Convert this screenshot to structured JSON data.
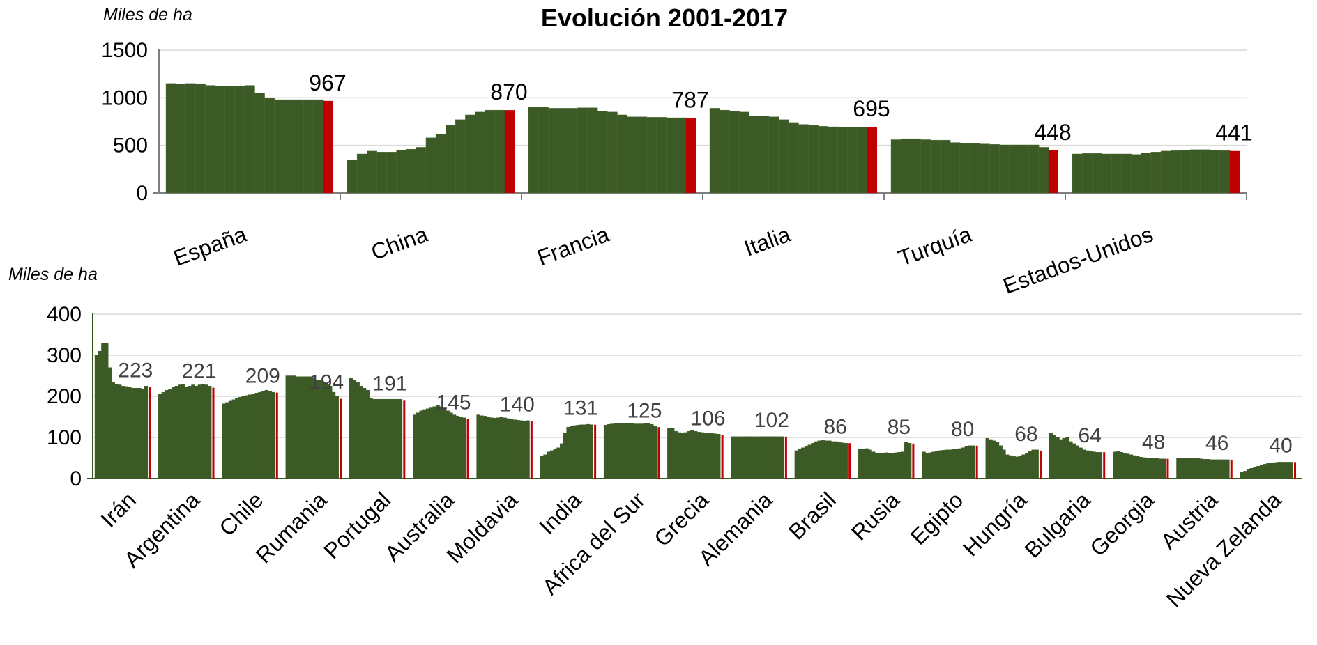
{
  "colors": {
    "bar": "#3C5A25",
    "highlight": "#C00000",
    "grid": "#D9D9D9",
    "axis": "#7F7F7F",
    "axis2": "#2F5A1C"
  },
  "chart_data": [
    {
      "type": "bar",
      "title": "Evolución 2001-2017",
      "ylabel": "Miles de ha",
      "ylim": [
        0,
        1500
      ],
      "yticks": [
        0,
        500,
        1000,
        1500
      ],
      "grid": true,
      "categories": [
        "España",
        "China",
        "Francia",
        "Italia",
        "Turquía",
        "Estados-Unidos"
      ],
      "x": [
        2001,
        2002,
        2003,
        2004,
        2005,
        2006,
        2007,
        2008,
        2009,
        2010,
        2011,
        2012,
        2013,
        2014,
        2015,
        2016,
        2017
      ],
      "series": [
        {
          "values": [
            1150,
            1145,
            1150,
            1145,
            1130,
            1125,
            1125,
            1120,
            1130,
            1050,
            1000,
            980,
            980,
            980,
            980,
            980,
            967
          ]
        },
        {
          "values": [
            350,
            410,
            440,
            430,
            430,
            450,
            460,
            480,
            580,
            620,
            710,
            770,
            820,
            850,
            870,
            870,
            870
          ]
        },
        {
          "values": [
            900,
            900,
            890,
            890,
            890,
            895,
            895,
            860,
            850,
            820,
            800,
            800,
            795,
            795,
            790,
            790,
            787
          ]
        },
        {
          "values": [
            890,
            870,
            860,
            850,
            810,
            810,
            800,
            770,
            740,
            720,
            710,
            700,
            695,
            690,
            690,
            690,
            695
          ]
        },
        {
          "values": [
            560,
            570,
            570,
            560,
            555,
            555,
            530,
            520,
            520,
            515,
            510,
            505,
            505,
            505,
            505,
            480,
            448
          ]
        },
        {
          "values": [
            410,
            415,
            415,
            410,
            410,
            410,
            405,
            420,
            430,
            440,
            445,
            450,
            455,
            455,
            450,
            445,
            441
          ]
        }
      ],
      "data_labels": [
        "967",
        "870",
        "787",
        "695",
        "448",
        "441"
      ]
    },
    {
      "type": "bar",
      "ylabel": "Miles de ha",
      "ylim": [
        0,
        400
      ],
      "yticks": [
        0,
        100,
        200,
        300,
        400
      ],
      "grid": true,
      "categories": [
        "Irán",
        "Argentina",
        "Chile",
        "Rumania",
        "Portugal",
        "Australia",
        "Moldavia",
        "India",
        "Africa del Sur",
        "Grecia",
        "Alemania",
        "Brasil",
        "Rusia",
        "Egipto",
        "Hungría",
        "Bulgaria",
        "Georgia",
        "Austria",
        "Nueva Zelanda"
      ],
      "x": [
        2001,
        2002,
        2003,
        2004,
        2005,
        2006,
        2007,
        2008,
        2009,
        2010,
        2011,
        2012,
        2013,
        2014,
        2015,
        2016,
        2017
      ],
      "series": [
        {
          "values": [
            300,
            310,
            330,
            330,
            270,
            235,
            230,
            228,
            225,
            224,
            222,
            220,
            220,
            220,
            218,
            225,
            223
          ]
        },
        {
          "values": [
            205,
            210,
            215,
            218,
            222,
            225,
            228,
            230,
            222,
            225,
            228,
            225,
            228,
            230,
            228,
            225,
            221
          ]
        },
        {
          "values": [
            182,
            185,
            190,
            192,
            195,
            198,
            200,
            202,
            204,
            206,
            208,
            210,
            212,
            215,
            212,
            210,
            209
          ]
        },
        {
          "values": [
            250,
            250,
            250,
            248,
            248,
            248,
            248,
            248,
            245,
            240,
            240,
            235,
            230,
            225,
            210,
            200,
            194
          ]
        },
        {
          "values": [
            245,
            240,
            235,
            225,
            220,
            215,
            195,
            193,
            193,
            193,
            193,
            193,
            193,
            193,
            193,
            193,
            191
          ]
        },
        {
          "values": [
            155,
            160,
            165,
            168,
            170,
            172,
            175,
            178,
            175,
            170,
            165,
            160,
            155,
            152,
            150,
            148,
            145
          ]
        },
        {
          "values": [
            155,
            153,
            152,
            150,
            148,
            147,
            148,
            150,
            148,
            146,
            144,
            143,
            142,
            141,
            140,
            141,
            140
          ]
        },
        {
          "values": [
            55,
            58,
            65,
            68,
            72,
            75,
            85,
            110,
            125,
            128,
            129,
            130,
            131,
            131,
            132,
            131,
            131
          ]
        },
        {
          "values": [
            130,
            132,
            133,
            134,
            135,
            135,
            135,
            134,
            134,
            133,
            133,
            133,
            134,
            134,
            132,
            128,
            125
          ]
        },
        {
          "values": [
            122,
            122,
            115,
            112,
            110,
            112,
            115,
            118,
            115,
            113,
            112,
            111,
            110,
            110,
            109,
            108,
            106
          ]
        },
        {
          "values": [
            102,
            102,
            102,
            102,
            102,
            102,
            102,
            102,
            102,
            102,
            102,
            102,
            102,
            102,
            102,
            102,
            102
          ]
        },
        {
          "values": [
            68,
            72,
            75,
            78,
            82,
            86,
            90,
            92,
            93,
            92,
            92,
            90,
            90,
            88,
            87,
            86,
            86
          ]
        },
        {
          "values": [
            72,
            72,
            73,
            70,
            65,
            62,
            62,
            62,
            63,
            62,
            62,
            63,
            64,
            65,
            88,
            86,
            85
          ]
        },
        {
          "values": [
            65,
            62,
            63,
            65,
            67,
            68,
            69,
            70,
            70,
            71,
            72,
            73,
            75,
            78,
            80,
            80,
            80
          ]
        },
        {
          "values": [
            98,
            95,
            92,
            88,
            80,
            70,
            58,
            56,
            54,
            53,
            55,
            58,
            62,
            66,
            70,
            70,
            68
          ]
        },
        {
          "values": [
            110,
            105,
            100,
            95,
            98,
            100,
            90,
            85,
            80,
            75,
            70,
            68,
            66,
            65,
            64,
            64,
            64
          ]
        },
        {
          "values": [
            65,
            66,
            64,
            62,
            60,
            58,
            56,
            54,
            52,
            51,
            50,
            50,
            49,
            49,
            48,
            48,
            48
          ]
        },
        {
          "values": [
            50,
            50,
            50,
            50,
            50,
            49,
            49,
            48,
            47,
            47,
            46,
            46,
            46,
            46,
            46,
            46,
            46
          ]
        },
        {
          "values": [
            15,
            18,
            22,
            25,
            28,
            30,
            33,
            35,
            37,
            38,
            39,
            40,
            40,
            40,
            40,
            40,
            40
          ]
        }
      ],
      "data_labels": [
        "223",
        "221",
        "209",
        "194",
        "191",
        "145",
        "140",
        "131",
        "125",
        "106",
        "102",
        "86",
        "85",
        "80",
        "68",
        "64",
        "48",
        "46",
        "40"
      ]
    }
  ]
}
